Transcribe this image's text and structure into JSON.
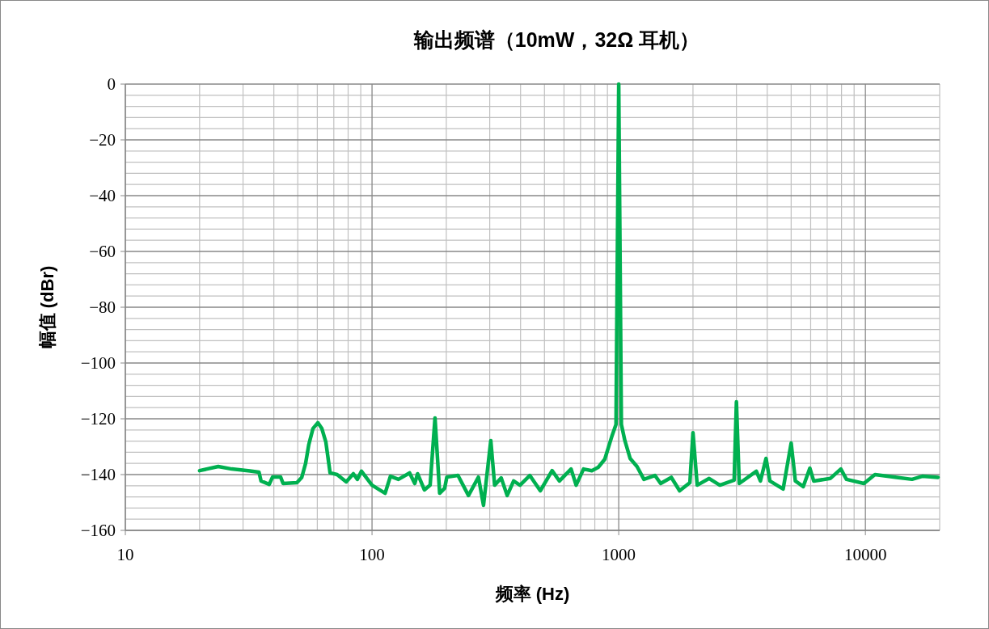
{
  "chart_data": {
    "type": "line",
    "title": "输出频谱（10mW，32Ω 耳机）",
    "xlabel": "频率 (Hz)",
    "ylabel": "幅值 (dBr)",
    "log": "x",
    "grid": true,
    "marker": "none",
    "line_style": "solid",
    "xlim": [
      10,
      20000
    ],
    "xticks": [
      10,
      100,
      1000,
      10000
    ],
    "ylim": [
      -160,
      0
    ],
    "yticks": [
      0,
      {
        "value": -20,
        "label": "−20"
      },
      {
        "value": -40,
        "label": "−40"
      },
      {
        "value": -60,
        "label": "−60"
      },
      {
        "value": -80,
        "label": "−80"
      },
      {
        "value": -100,
        "label": "−100"
      },
      {
        "value": -120,
        "label": "−120"
      },
      {
        "value": -140,
        "label": "−140"
      },
      {
        "value": -160,
        "label": "−160"
      }
    ],
    "series": [
      {
        "color": "#00b050",
        "x": [
          20,
          23.8,
          27,
          32,
          34.8,
          35.5,
          38.3,
          39.5,
          42.6,
          43.6,
          49.6,
          51.9,
          53.8,
          55.4,
          57.6,
          60.3,
          62.6,
          65,
          67.6,
          72.2,
          78.6,
          84,
          87.2,
          90.6,
          100,
          113,
          118.7,
          128,
          142,
          149,
          153,
          163,
          172,
          180,
          188,
          197,
          201,
          223,
          246,
          270,
          283,
          303,
          314,
          334,
          353,
          375,
          398,
          436,
          481,
          537,
          575,
          641,
          672,
          720,
          778,
          826,
          878,
          937,
          975,
          1000,
          1025,
          1059,
          1112,
          1186,
          1265,
          1402,
          1479,
          1634,
          1765,
          1943,
          2000,
          2080,
          2326,
          2570,
          2937,
          3000,
          3080,
          3613,
          3753,
          3955,
          4100,
          4640,
          5000,
          5200,
          5600,
          5955,
          6172,
          7200,
          7950,
          8380,
          9860,
          10930,
          13400,
          15450,
          17000,
          19700
        ],
        "values": [
          -138.6,
          -137.1,
          -138,
          -138.7,
          -139.1,
          -142.3,
          -143.5,
          -140.9,
          -140.9,
          -143.2,
          -142.9,
          -141,
          -136,
          -129.3,
          -123.5,
          -121.4,
          -123.5,
          -128.4,
          -139.4,
          -140,
          -142.6,
          -139.7,
          -141.7,
          -138.8,
          -143.8,
          -146.7,
          -140.6,
          -141.7,
          -139.4,
          -143.2,
          -139.7,
          -145.5,
          -143.8,
          -119.7,
          -146.7,
          -144.9,
          -140.9,
          -140.3,
          -147.5,
          -140.9,
          -151,
          -127.8,
          -143.8,
          -141.2,
          -147.5,
          -142.3,
          -143.8,
          -140.3,
          -145.8,
          -138.6,
          -142.3,
          -138,
          -143.8,
          -138,
          -138.6,
          -137.4,
          -134.5,
          -126.4,
          -122,
          0,
          -122,
          -127.8,
          -134.2,
          -137.1,
          -141.7,
          -140.3,
          -143.2,
          -141,
          -145.8,
          -142.9,
          -125,
          -143.8,
          -141.4,
          -143.8,
          -142,
          -113.9,
          -143.2,
          -138.8,
          -142.3,
          -134.2,
          -142.3,
          -145.2,
          -128.7,
          -142.3,
          -144.3,
          -137.7,
          -142.3,
          -141.4,
          -138,
          -141.7,
          -143.2,
          -140,
          -141,
          -141.7,
          -140.6,
          -141
        ]
      }
    ]
  }
}
